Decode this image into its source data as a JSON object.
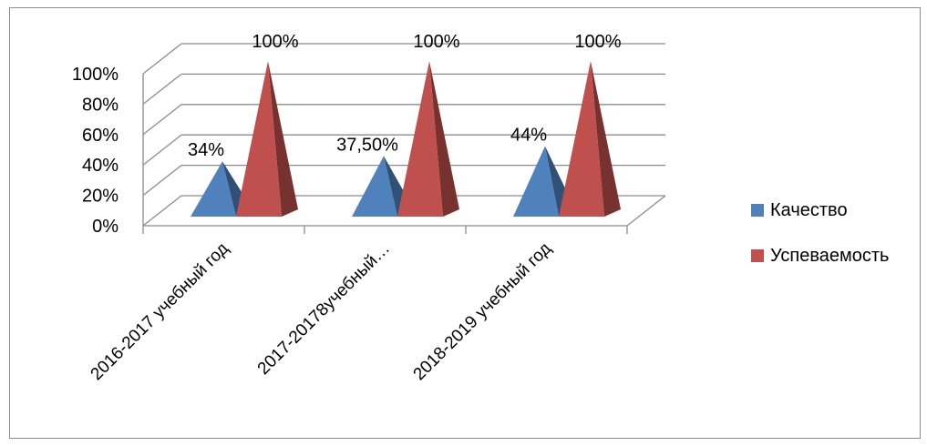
{
  "chart_data": {
    "type": "bar",
    "shape": "3d-pyramid",
    "categories": [
      "2016-2017 учебный год",
      "2017-20178учебный…",
      "2018-2019 учебный год"
    ],
    "series": [
      {
        "name": "Качество",
        "values": [
          34,
          37.5,
          44
        ],
        "labels": [
          "34%",
          "37,50%",
          "44%"
        ],
        "color": "#4f81bd"
      },
      {
        "name": "Успеваемость",
        "values": [
          100,
          100,
          100
        ],
        "labels": [
          "100%",
          "100%",
          "100%"
        ],
        "color": "#c0504d"
      }
    ],
    "ylim": [
      0,
      100
    ],
    "yticks": [
      "0%",
      "20%",
      "40%",
      "60%",
      "80%",
      "100%"
    ],
    "grid": true,
    "legend_position": "right"
  }
}
